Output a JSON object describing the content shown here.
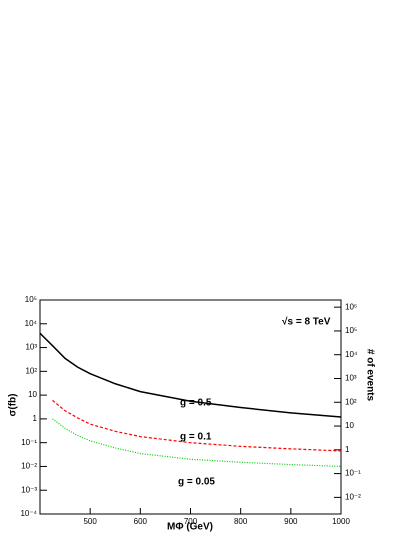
{
  "chart_data": {
    "type": "line",
    "x_label": "MΦ (GeV)",
    "y_label": "σ(fb)",
    "y2_label": "# of events",
    "annotations": [
      "√s = 8 TeV",
      "g = 0.5",
      "g = 0.1",
      "g = 0.05"
    ],
    "x": [
      400,
      425,
      450,
      475,
      500,
      550,
      600,
      700,
      800,
      900,
      1000
    ],
    "series": [
      {
        "name": "g = 0.5",
        "color": "#000000",
        "style": "solid",
        "values": [
          4000,
          1200,
          350,
          150,
          80,
          30,
          14,
          5.5,
          3,
          1.8,
          1.2
        ]
      },
      {
        "name": "g = 0.1",
        "color": "#ff0000",
        "style": "dashed",
        "values": [
          null,
          6,
          2.2,
          1.1,
          0.6,
          0.3,
          0.18,
          0.1,
          0.07,
          0.055,
          0.045
        ]
      },
      {
        "name": "g = 0.05",
        "color": "#00cc00",
        "style": "dotted",
        "values": [
          null,
          1,
          0.4,
          0.2,
          0.12,
          0.06,
          0.035,
          0.02,
          0.015,
          0.012,
          0.01
        ]
      }
    ],
    "xlim": [
      400,
      1000
    ],
    "xticks": [
      500,
      600,
      700,
      800,
      900,
      1000
    ],
    "ylim": [
      0.0001,
      100000
    ],
    "log_y": true,
    "yticks": [
      {
        "value": 0.0001,
        "label": "10⁻⁴"
      },
      {
        "value": 0.001,
        "label": "10⁻³"
      },
      {
        "value": 0.01,
        "label": "10⁻²"
      },
      {
        "value": 0.1,
        "label": "10⁻¹"
      },
      1,
      10,
      {
        "value": 100,
        "label": "10²"
      },
      {
        "value": 1000,
        "label": "10³"
      },
      {
        "value": 10000,
        "label": "10⁴"
      },
      {
        "value": 100000,
        "label": "10⁵"
      }
    ],
    "y2lim": [
      0.002,
      2000000
    ],
    "y2ticks": [
      {
        "value": 0.01,
        "label": "10⁻²"
      },
      {
        "value": 0.1,
        "label": "10⁻¹"
      },
      1,
      10,
      {
        "value": 100,
        "label": "10²"
      },
      {
        "value": 1000,
        "label": "10³"
      },
      {
        "value": 10000,
        "label": "10⁴"
      },
      {
        "value": 100000,
        "label": "10⁵"
      },
      {
        "value": 1000000,
        "label": "10⁶"
      }
    ]
  }
}
